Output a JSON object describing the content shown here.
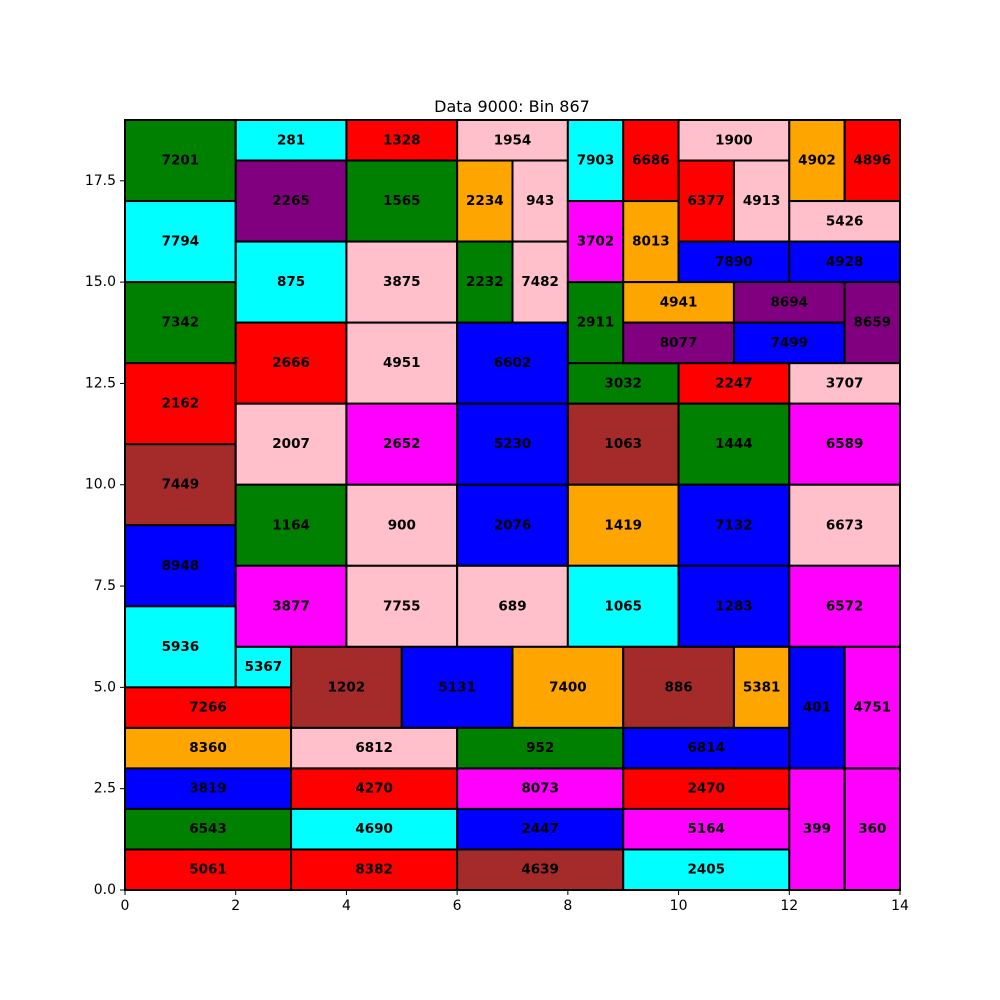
{
  "chart_data": {
    "type": "treemap",
    "title": "Data 9000: Bin 867",
    "xlim": [
      0,
      14
    ],
    "ylim": [
      0,
      19
    ],
    "x_ticks": [
      {
        "value": 0,
        "label": "0"
      },
      {
        "value": 2,
        "label": "2"
      },
      {
        "value": 4,
        "label": "4"
      },
      {
        "value": 6,
        "label": "6"
      },
      {
        "value": 8,
        "label": "8"
      },
      {
        "value": 10,
        "label": "10"
      },
      {
        "value": 12,
        "label": "12"
      },
      {
        "value": 14,
        "label": "14"
      }
    ],
    "y_ticks": [
      {
        "value": 0,
        "label": "0.0"
      },
      {
        "value": 2.5,
        "label": "2.5"
      },
      {
        "value": 5,
        "label": "5.0"
      },
      {
        "value": 7.5,
        "label": "7.5"
      },
      {
        "value": 10,
        "label": "10.0"
      },
      {
        "value": 12.5,
        "label": "12.5"
      },
      {
        "value": 15,
        "label": "15.0"
      },
      {
        "value": 17.5,
        "label": "17.5"
      }
    ],
    "colors": {
      "green": "#008000",
      "cyan": "#00ffff",
      "red": "#ff0000",
      "pink": "#ffc0cb",
      "purple": "#800080",
      "orange": "#ffa500",
      "magenta": "#ff00ff",
      "brown": "#a52a2a",
      "blue": "#0000ff"
    },
    "rects": [
      {
        "label": "7201",
        "x0": 0,
        "x1": 2,
        "y0": 17,
        "y1": 19,
        "color": "green"
      },
      {
        "label": "7794",
        "x0": 0,
        "x1": 2,
        "y0": 15,
        "y1": 17,
        "color": "cyan"
      },
      {
        "label": "7342",
        "x0": 0,
        "x1": 2,
        "y0": 13,
        "y1": 15,
        "color": "green"
      },
      {
        "label": "2162",
        "x0": 0,
        "x1": 2,
        "y0": 11,
        "y1": 13,
        "color": "red"
      },
      {
        "label": "7449",
        "x0": 0,
        "x1": 2,
        "y0": 9,
        "y1": 11,
        "color": "brown"
      },
      {
        "label": "8948",
        "x0": 0,
        "x1": 2,
        "y0": 7,
        "y1": 9,
        "color": "blue"
      },
      {
        "label": "5936",
        "x0": 0,
        "x1": 2,
        "y0": 5,
        "y1": 7,
        "color": "cyan"
      },
      {
        "label": "281",
        "x0": 2,
        "x1": 4,
        "y0": 18,
        "y1": 19,
        "color": "cyan"
      },
      {
        "label": "2265",
        "x0": 2,
        "x1": 4,
        "y0": 16,
        "y1": 18,
        "color": "purple"
      },
      {
        "label": "875",
        "x0": 2,
        "x1": 4,
        "y0": 14,
        "y1": 16,
        "color": "cyan"
      },
      {
        "label": "2666",
        "x0": 2,
        "x1": 4,
        "y0": 12,
        "y1": 14,
        "color": "red"
      },
      {
        "label": "2007",
        "x0": 2,
        "x1": 4,
        "y0": 10,
        "y1": 12,
        "color": "pink"
      },
      {
        "label": "1164",
        "x0": 2,
        "x1": 4,
        "y0": 8,
        "y1": 10,
        "color": "green"
      },
      {
        "label": "3877",
        "x0": 2,
        "x1": 4,
        "y0": 6,
        "y1": 8,
        "color": "magenta"
      },
      {
        "label": "5367",
        "x0": 2,
        "x1": 3,
        "y0": 5,
        "y1": 6,
        "color": "cyan"
      },
      {
        "label": "1328",
        "x0": 4,
        "x1": 6,
        "y0": 18,
        "y1": 19,
        "color": "red"
      },
      {
        "label": "1565",
        "x0": 4,
        "x1": 6,
        "y0": 16,
        "y1": 18,
        "color": "green"
      },
      {
        "label": "3875",
        "x0": 4,
        "x1": 6,
        "y0": 14,
        "y1": 16,
        "color": "pink"
      },
      {
        "label": "4951",
        "x0": 4,
        "x1": 6,
        "y0": 12,
        "y1": 14,
        "color": "pink"
      },
      {
        "label": "2652",
        "x0": 4,
        "x1": 6,
        "y0": 10,
        "y1": 12,
        "color": "magenta"
      },
      {
        "label": "900",
        "x0": 4,
        "x1": 6,
        "y0": 8,
        "y1": 10,
        "color": "pink"
      },
      {
        "label": "7755",
        "x0": 4,
        "x1": 6,
        "y0": 6,
        "y1": 8,
        "color": "pink"
      },
      {
        "label": "1954",
        "x0": 6,
        "x1": 8,
        "y0": 18,
        "y1": 19,
        "color": "pink"
      },
      {
        "label": "2234",
        "x0": 6,
        "x1": 7,
        "y0": 16,
        "y1": 18,
        "color": "orange"
      },
      {
        "label": "943",
        "x0": 7,
        "x1": 8,
        "y0": 16,
        "y1": 18,
        "color": "pink"
      },
      {
        "label": "2232",
        "x0": 6,
        "x1": 7,
        "y0": 14,
        "y1": 16,
        "color": "green"
      },
      {
        "label": "7482",
        "x0": 7,
        "x1": 8,
        "y0": 14,
        "y1": 16,
        "color": "pink"
      },
      {
        "label": "6602",
        "x0": 6,
        "x1": 8,
        "y0": 12,
        "y1": 14,
        "color": "blue"
      },
      {
        "label": "5230",
        "x0": 6,
        "x1": 8,
        "y0": 10,
        "y1": 12,
        "color": "blue"
      },
      {
        "label": "2076",
        "x0": 6,
        "x1": 8,
        "y0": 8,
        "y1": 10,
        "color": "blue"
      },
      {
        "label": "689",
        "x0": 6,
        "x1": 8,
        "y0": 6,
        "y1": 8,
        "color": "pink"
      },
      {
        "label": "7903",
        "x0": 8,
        "x1": 9,
        "y0": 17,
        "y1": 19,
        "color": "cyan"
      },
      {
        "label": "6686",
        "x0": 9,
        "x1": 10,
        "y0": 17,
        "y1": 19,
        "color": "red"
      },
      {
        "label": "3702",
        "x0": 8,
        "x1": 9,
        "y0": 15,
        "y1": 17,
        "color": "magenta"
      },
      {
        "label": "8013",
        "x0": 9,
        "x1": 10,
        "y0": 15,
        "y1": 17,
        "color": "orange"
      },
      {
        "label": "2911",
        "x0": 8,
        "x1": 9,
        "y0": 13,
        "y1": 15,
        "color": "green"
      },
      {
        "label": "3032",
        "x0": 8,
        "x1": 10,
        "y0": 12,
        "y1": 13,
        "color": "green"
      },
      {
        "label": "1063",
        "x0": 8,
        "x1": 10,
        "y0": 10,
        "y1": 12,
        "color": "brown"
      },
      {
        "label": "1419",
        "x0": 8,
        "x1": 10,
        "y0": 8,
        "y1": 10,
        "color": "orange"
      },
      {
        "label": "1065",
        "x0": 8,
        "x1": 10,
        "y0": 6,
        "y1": 8,
        "color": "cyan"
      },
      {
        "label": "1900",
        "x0": 10,
        "x1": 12,
        "y0": 18,
        "y1": 19,
        "color": "pink"
      },
      {
        "label": "6377",
        "x0": 10,
        "x1": 11,
        "y0": 16,
        "y1": 18,
        "color": "red"
      },
      {
        "label": "4913",
        "x0": 11,
        "x1": 12,
        "y0": 16,
        "y1": 18,
        "color": "pink"
      },
      {
        "label": "7890",
        "x0": 10,
        "x1": 12,
        "y0": 15,
        "y1": 16,
        "color": "blue"
      },
      {
        "label": "4941",
        "x0": 9,
        "x1": 11,
        "y0": 14,
        "y1": 15,
        "color": "orange"
      },
      {
        "label": "8077",
        "x0": 9,
        "x1": 11,
        "y0": 13,
        "y1": 14,
        "color": "purple"
      },
      {
        "label": "2247",
        "x0": 10,
        "x1": 12,
        "y0": 12,
        "y1": 13,
        "color": "red"
      },
      {
        "label": "1444",
        "x0": 10,
        "x1": 12,
        "y0": 10,
        "y1": 12,
        "color": "green"
      },
      {
        "label": "7132",
        "x0": 10,
        "x1": 12,
        "y0": 8,
        "y1": 10,
        "color": "blue"
      },
      {
        "label": "1283",
        "x0": 10,
        "x1": 12,
        "y0": 6,
        "y1": 8,
        "color": "blue"
      },
      {
        "label": "4902",
        "x0": 12,
        "x1": 13,
        "y0": 17,
        "y1": 19,
        "color": "orange"
      },
      {
        "label": "4896",
        "x0": 13,
        "x1": 14,
        "y0": 17,
        "y1": 19,
        "color": "red"
      },
      {
        "label": "5426",
        "x0": 12,
        "x1": 14,
        "y0": 16,
        "y1": 17,
        "color": "pink"
      },
      {
        "label": "4928",
        "x0": 12,
        "x1": 14,
        "y0": 15,
        "y1": 16,
        "color": "blue"
      },
      {
        "label": "8694",
        "x0": 11,
        "x1": 13,
        "y0": 14,
        "y1": 15,
        "color": "purple"
      },
      {
        "label": "7499",
        "x0": 11,
        "x1": 13,
        "y0": 13,
        "y1": 14,
        "color": "blue"
      },
      {
        "label": "8659",
        "x0": 13,
        "x1": 14,
        "y0": 13,
        "y1": 15,
        "color": "purple"
      },
      {
        "label": "3707",
        "x0": 12,
        "x1": 14,
        "y0": 12,
        "y1": 13,
        "color": "pink"
      },
      {
        "label": "6589",
        "x0": 12,
        "x1": 14,
        "y0": 10,
        "y1": 12,
        "color": "magenta"
      },
      {
        "label": "6673",
        "x0": 12,
        "x1": 14,
        "y0": 8,
        "y1": 10,
        "color": "pink"
      },
      {
        "label": "6572",
        "x0": 12,
        "x1": 14,
        "y0": 6,
        "y1": 8,
        "color": "magenta"
      },
      {
        "label": "7266",
        "x0": 0,
        "x1": 3,
        "y0": 4,
        "y1": 5,
        "color": "red"
      },
      {
        "label": "8360",
        "x0": 0,
        "x1": 3,
        "y0": 3,
        "y1": 4,
        "color": "orange"
      },
      {
        "label": "3819",
        "x0": 0,
        "x1": 3,
        "y0": 2,
        "y1": 3,
        "color": "blue"
      },
      {
        "label": "6543",
        "x0": 0,
        "x1": 3,
        "y0": 1,
        "y1": 2,
        "color": "green"
      },
      {
        "label": "5061",
        "x0": 0,
        "x1": 3,
        "y0": 0,
        "y1": 1,
        "color": "red"
      },
      {
        "label": "1202",
        "x0": 3,
        "x1": 5,
        "y0": 4,
        "y1": 6,
        "color": "brown"
      },
      {
        "label": "5131",
        "x0": 5,
        "x1": 7,
        "y0": 4,
        "y1": 6,
        "color": "blue"
      },
      {
        "label": "7400",
        "x0": 7,
        "x1": 9,
        "y0": 4,
        "y1": 6,
        "color": "orange"
      },
      {
        "label": "886",
        "x0": 9,
        "x1": 11,
        "y0": 4,
        "y1": 6,
        "color": "brown"
      },
      {
        "label": "5381",
        "x0": 11,
        "x1": 12,
        "y0": 4,
        "y1": 6,
        "color": "orange"
      },
      {
        "label": "401",
        "x0": 12,
        "x1": 13,
        "y0": 3,
        "y1": 6,
        "color": "blue"
      },
      {
        "label": "4751",
        "x0": 13,
        "x1": 14,
        "y0": 3,
        "y1": 6,
        "color": "magenta"
      },
      {
        "label": "6812",
        "x0": 3,
        "x1": 6,
        "y0": 3,
        "y1": 4,
        "color": "pink"
      },
      {
        "label": "4270",
        "x0": 3,
        "x1": 6,
        "y0": 2,
        "y1": 3,
        "color": "red"
      },
      {
        "label": "4690",
        "x0": 3,
        "x1": 6,
        "y0": 1,
        "y1": 2,
        "color": "cyan"
      },
      {
        "label": "8382",
        "x0": 3,
        "x1": 6,
        "y0": 0,
        "y1": 1,
        "color": "red"
      },
      {
        "label": "952",
        "x0": 6,
        "x1": 9,
        "y0": 3,
        "y1": 4,
        "color": "green"
      },
      {
        "label": "8073",
        "x0": 6,
        "x1": 9,
        "y0": 2,
        "y1": 3,
        "color": "magenta"
      },
      {
        "label": "2447",
        "x0": 6,
        "x1": 9,
        "y0": 1,
        "y1": 2,
        "color": "blue"
      },
      {
        "label": "4639",
        "x0": 6,
        "x1": 9,
        "y0": 0,
        "y1": 1,
        "color": "brown"
      },
      {
        "label": "6814",
        "x0": 9,
        "x1": 12,
        "y0": 3,
        "y1": 4,
        "color": "blue"
      },
      {
        "label": "2470",
        "x0": 9,
        "x1": 12,
        "y0": 2,
        "y1": 3,
        "color": "red"
      },
      {
        "label": "5164",
        "x0": 9,
        "x1": 12,
        "y0": 1,
        "y1": 2,
        "color": "magenta"
      },
      {
        "label": "2405",
        "x0": 9,
        "x1": 12,
        "y0": 0,
        "y1": 1,
        "color": "cyan"
      },
      {
        "label": "399",
        "x0": 12,
        "x1": 13,
        "y0": 0,
        "y1": 3,
        "color": "magenta"
      },
      {
        "label": "360",
        "x0": 13,
        "x1": 14,
        "y0": 0,
        "y1": 3,
        "color": "magenta"
      }
    ]
  }
}
